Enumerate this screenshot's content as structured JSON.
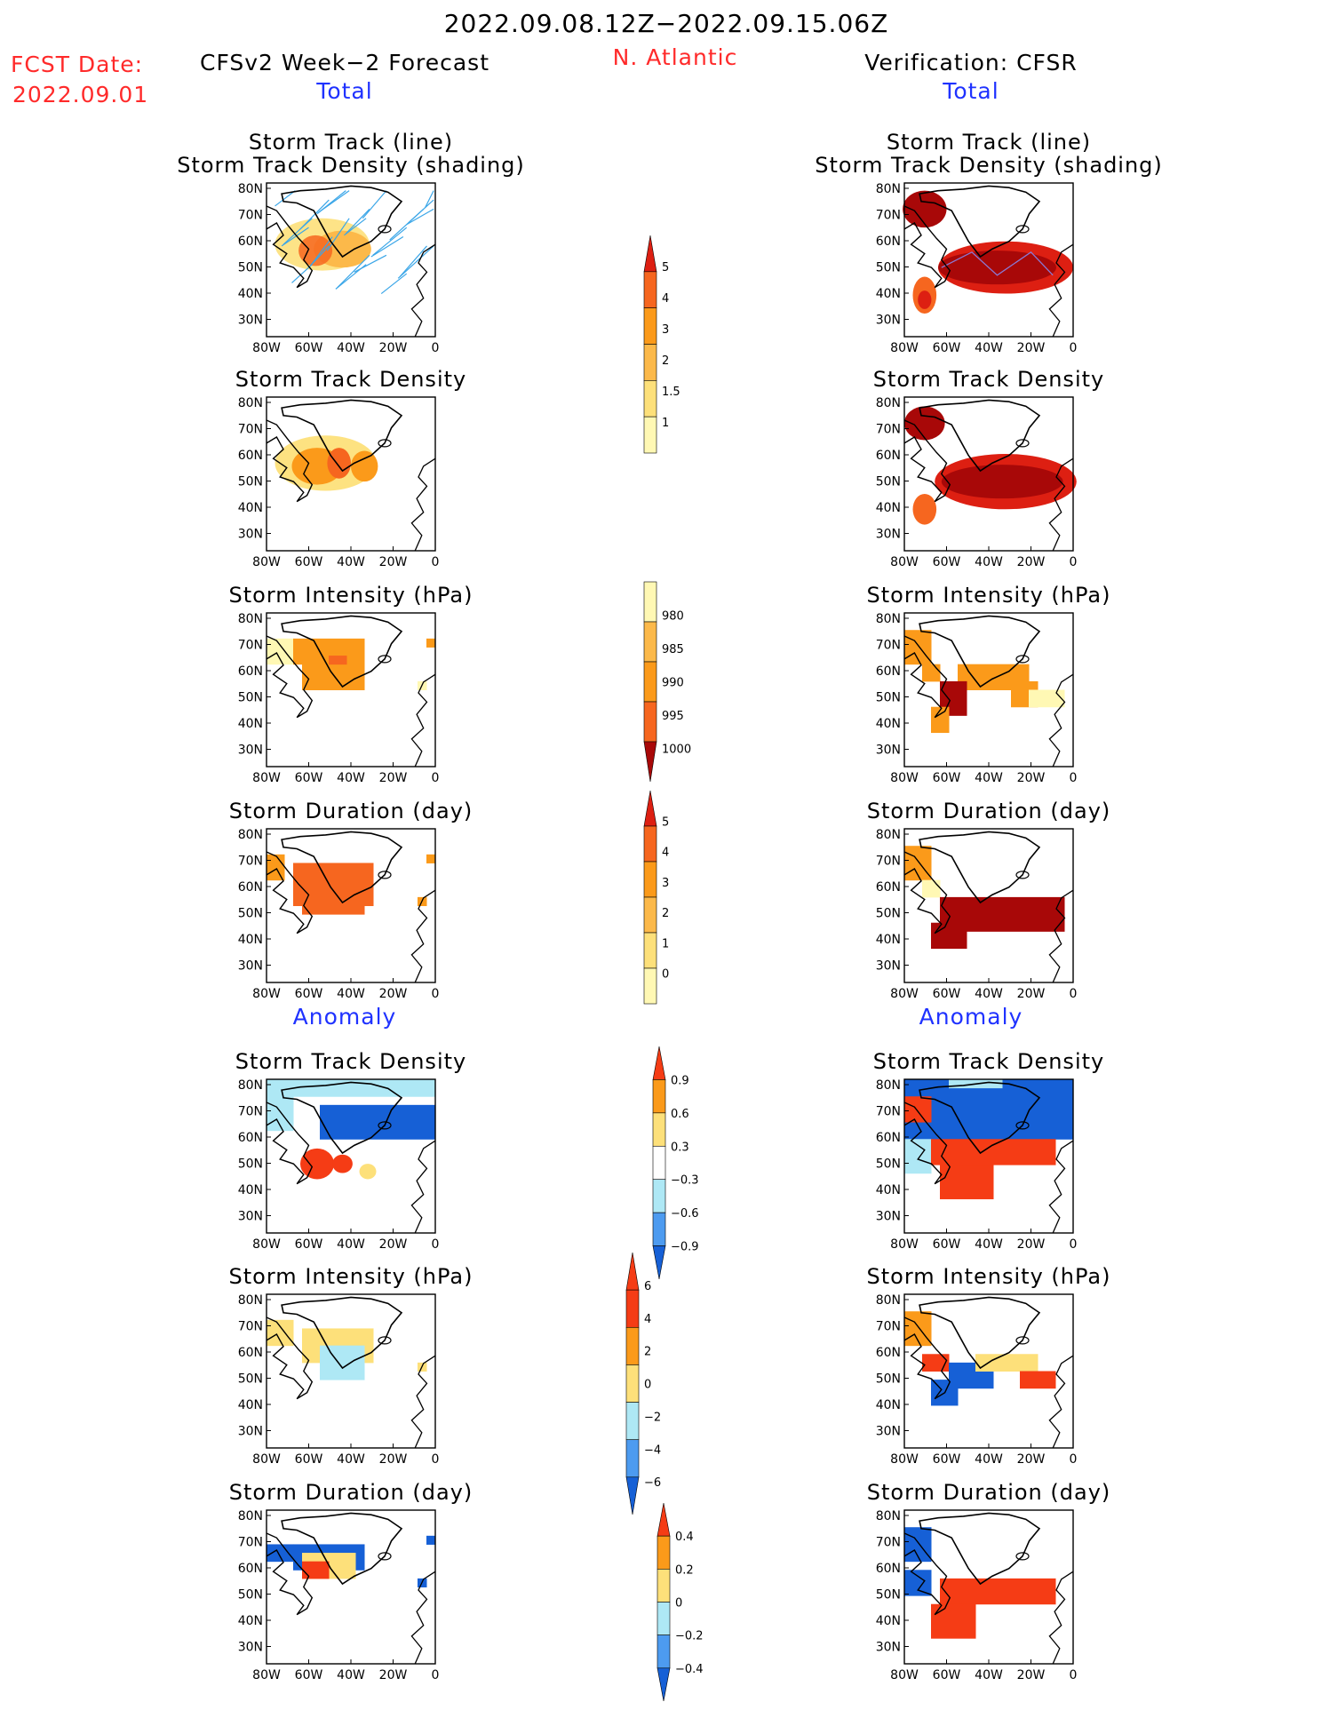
{
  "header": {
    "date_range": "2022.09.08.12Z−2022.09.15.06Z",
    "fcst_label": "FCST Date:",
    "fcst_date": "2022.09.01",
    "left_title": "CFSv2 Week−2 Forecast",
    "region": "N. Atlantic",
    "right_title": "Verification: CFSR",
    "left_total": "Total",
    "right_total": "Total",
    "left_anomaly": "Anomaly",
    "right_anomaly": "Anomaly"
  },
  "panel_titles": [
    [
      "Storm Track (line)",
      "Storm Track Density (shading)"
    ],
    [
      "Storm Track Density"
    ],
    [
      "Storm Intensity (hPa)"
    ],
    [
      "Storm Duration (day)"
    ],
    [
      "Storm Track Density"
    ],
    [
      "Storm Intensity (hPa)"
    ],
    [
      "Storm Duration (day)"
    ]
  ],
  "axes": {
    "lat_labels": [
      "80N",
      "70N",
      "60N",
      "50N",
      "40N",
      "30N"
    ],
    "lon_labels": [
      "80W",
      "60W",
      "40W",
      "20W",
      "0"
    ]
  },
  "colors": {
    "red_text": "#ff2a2a",
    "blue_text": "#1f32ff",
    "track_line": "#3aa6e8",
    "positive_scale": [
      "#fff8b4",
      "#fde07a",
      "#fcb94a",
      "#fb9a1a",
      "#f6661f",
      "#dd1f12",
      "#a80808"
    ],
    "anomaly_scale": [
      "#1660d6",
      "#4d9bf0",
      "#aee8f5",
      "#ffffff",
      "#fde07a",
      "#fb9a1a",
      "#f53c15"
    ]
  },
  "chart_data": {
    "type": "heatmap",
    "colorbars": [
      {
        "id": "total-density",
        "labels": [
          "1",
          "1.5",
          "2",
          "3",
          "4",
          "5"
        ]
      },
      {
        "id": "total-intensity",
        "labels": [
          "1000",
          "995",
          "990",
          "985",
          "980"
        ]
      },
      {
        "id": "total-duration",
        "labels": [
          "0",
          "1",
          "2",
          "3",
          "4",
          "5"
        ]
      },
      {
        "id": "anom-density",
        "labels": [
          "−0.9",
          "−0.6",
          "−0.3",
          "0.3",
          "0.6",
          "0.9"
        ]
      },
      {
        "id": "anom-intensity",
        "labels": [
          "−6",
          "−4",
          "−2",
          "0",
          "2",
          "4",
          "6"
        ]
      },
      {
        "id": "anom-duration",
        "labels": [
          "−0.4",
          "−0.2",
          "0",
          "0.2",
          "0.4"
        ]
      }
    ]
  }
}
